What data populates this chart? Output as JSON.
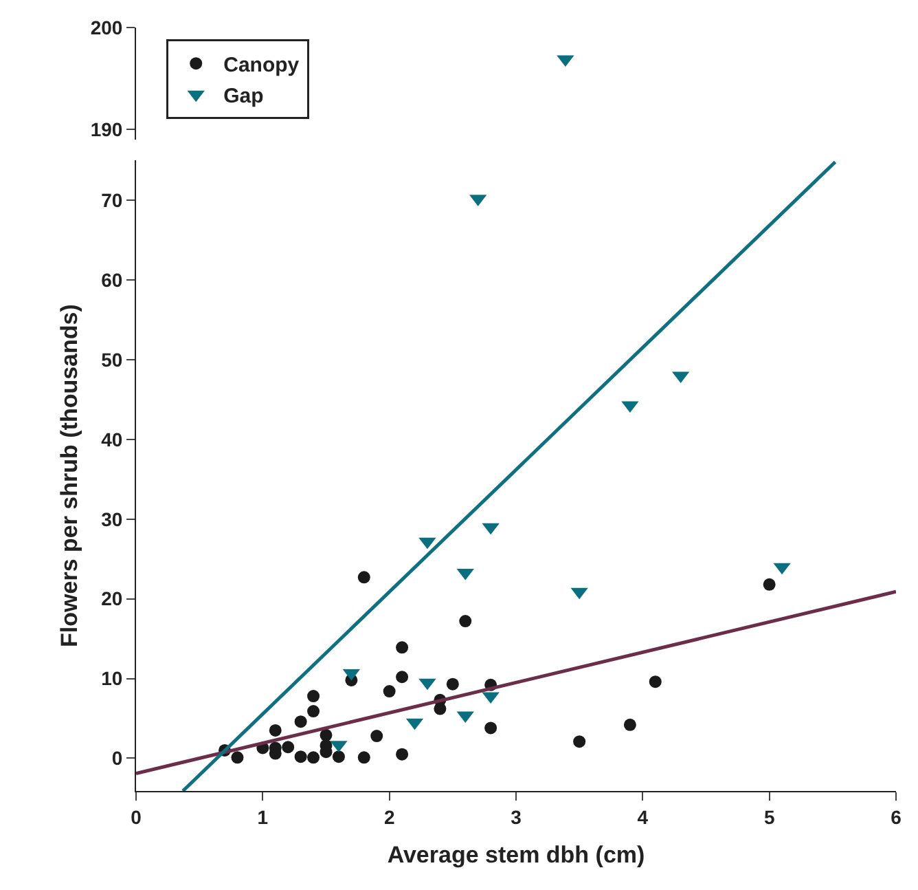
{
  "chart_data": [
    {
      "type": "scatter",
      "xlim": [
        0,
        6
      ],
      "ylim": [
        189,
        200
      ],
      "yticks": [
        190,
        200
      ],
      "tick_labels": "y",
      "series": [
        {
          "color": "#0a7080",
          "marker": "triangle",
          "x": [
            3.39
          ],
          "values": [
            196.9
          ]
        }
      ]
    },
    {
      "type": "scatter",
      "xlabel": "Average stem dbh (cm)",
      "ylabel": "Flowers per shrub (thousands)",
      "xlim": [
        0,
        6
      ],
      "xticks": [
        0,
        1,
        2,
        3,
        4,
        5,
        6
      ],
      "ylim": [
        -4.1,
        75
      ],
      "yticks": [
        0,
        10,
        20,
        30,
        40,
        50,
        60,
        70
      ],
      "legend": "top left",
      "series": [
        {
          "name": "Canopy",
          "color": "#1a1a1a",
          "marker": "circle",
          "x": [
            0.7,
            0.8,
            1.0,
            1.1,
            1.1,
            1.1,
            1.2,
            1.3,
            1.3,
            1.4,
            1.4,
            1.4,
            1.5,
            1.5,
            1.5,
            1.6,
            1.7,
            1.8,
            1.8,
            1.9,
            2.0,
            2.1,
            2.1,
            2.1,
            2.4,
            2.4,
            2.5,
            2.6,
            2.8,
            2.8,
            3.5,
            3.9,
            4.1,
            5.0
          ],
          "values": [
            1.0,
            0.1,
            1.3,
            3.5,
            1.3,
            0.6,
            1.4,
            4.6,
            0.2,
            7.8,
            5.9,
            0.1,
            2.9,
            1.6,
            0.8,
            0.2,
            9.8,
            22.7,
            0.1,
            2.8,
            8.4,
            13.9,
            10.2,
            0.5,
            7.3,
            6.2,
            9.3,
            17.2,
            9.2,
            3.8,
            2.1,
            4.2,
            9.6,
            21.8
          ]
        },
        {
          "name": "Gap",
          "color": "#0a7080",
          "marker": "triangle",
          "x": [
            1.6,
            1.7,
            2.2,
            2.3,
            2.3,
            2.6,
            2.6,
            2.7,
            2.8,
            2.8,
            3.5,
            3.9,
            4.3,
            5.1
          ],
          "values": [
            1.7,
            10.7,
            4.5,
            27.2,
            9.5,
            23.3,
            5.4,
            70.2,
            29.0,
            7.8,
            20.9,
            44.3,
            48.0,
            24.0
          ]
        },
        {
          "type": "line",
          "color": "#6b2d4a",
          "marker": "none",
          "x": [
            0,
            6
          ],
          "values": [
            -1.9,
            20.9
          ]
        },
        {
          "type": "line",
          "color": "#0e7080",
          "marker": "none",
          "x": [
            0.37,
            5.52
          ],
          "values": [
            -4.1,
            74.8
          ]
        }
      ]
    }
  ]
}
